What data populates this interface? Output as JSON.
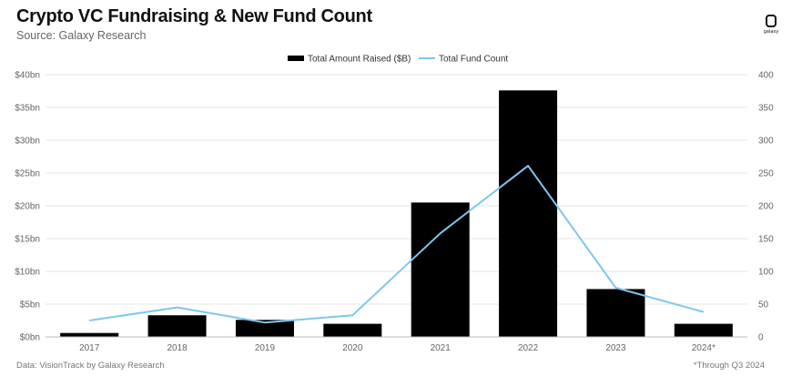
{
  "header": {
    "title": "Crypto VC Fundraising & New Fund Count",
    "subtitle": "Source: Galaxy Research",
    "logo_text": "galaxy"
  },
  "footer": {
    "left": "Data: VisionTrack by Galaxy Research",
    "right": "*Through Q3 2024"
  },
  "colors": {
    "bar": "#000000",
    "line": "#7cc7f2",
    "grid": "#e6e6e6",
    "axis_text": "#666666"
  },
  "chart_data": {
    "type": "bar",
    "title": "Crypto VC Fundraising & New Fund Count",
    "subtitle": "Source: Galaxy Research",
    "categories": [
      "2017",
      "2018",
      "2019",
      "2020",
      "2021",
      "2022",
      "2023",
      "2024*"
    ],
    "series": [
      {
        "name": "Total Amount Raised ($B)",
        "type": "bar",
        "axis": "left",
        "color": "#000000",
        "values": [
          0.6,
          3.3,
          2.6,
          2.0,
          20.5,
          37.6,
          7.3,
          2.0
        ]
      },
      {
        "name": "Total Fund Count",
        "type": "line",
        "axis": "right",
        "color": "#7cc7f2",
        "values": [
          25,
          45,
          22,
          33,
          158,
          261,
          75,
          38
        ]
      }
    ],
    "y_left": {
      "ylim": [
        0,
        40
      ],
      "ticks": [
        0,
        5,
        10,
        15,
        20,
        25,
        30,
        35,
        40
      ],
      "tick_labels": [
        "$0bn",
        "$5bn",
        "$10bn",
        "$15bn",
        "$20bn",
        "$25bn",
        "$30bn",
        "$35bn",
        "$40bn"
      ]
    },
    "y_right": {
      "ylim": [
        0,
        400
      ],
      "ticks": [
        0,
        50,
        100,
        150,
        200,
        250,
        300,
        350,
        400
      ],
      "tick_labels": [
        "0",
        "50",
        "100",
        "150",
        "200",
        "250",
        "300",
        "350",
        "400"
      ]
    },
    "grid": true,
    "legend_position": "top-center"
  }
}
